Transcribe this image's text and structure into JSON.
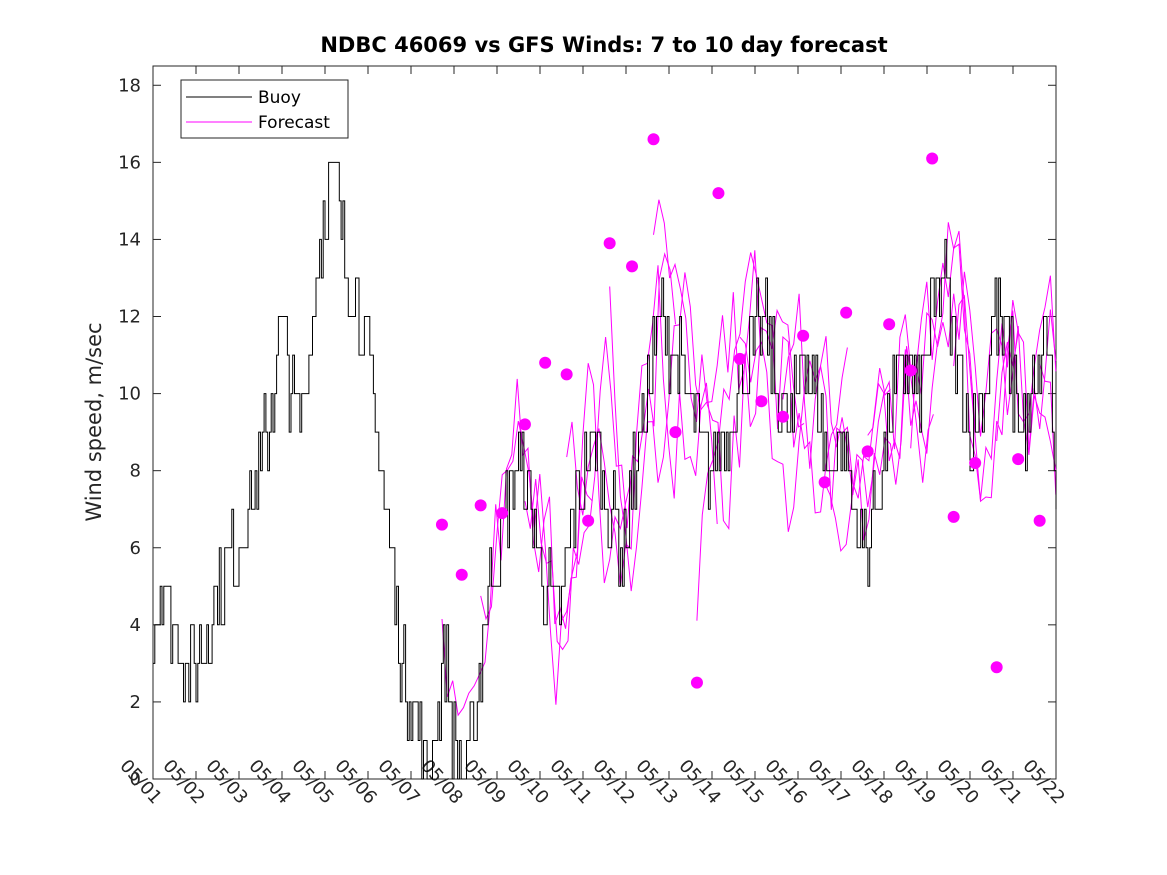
{
  "chart_data": {
    "type": "line",
    "title": "NDBC 46069 vs GFS Winds: 7 to 10 day forecast",
    "xlabel": "",
    "ylabel": "Wind speed, m/sec",
    "xlim": [
      "05/01",
      "05/22"
    ],
    "ylim": [
      0,
      18.5
    ],
    "x_tick_labels": [
      "05/01",
      "05/02",
      "05/03",
      "05/04",
      "05/05",
      "05/06",
      "05/07",
      "05/08",
      "05/09",
      "05/10",
      "05/11",
      "05/12",
      "05/13",
      "05/14",
      "05/15",
      "05/16",
      "05/17",
      "05/18",
      "05/19",
      "05/20",
      "05/21",
      "05/22"
    ],
    "y_ticks": [
      0,
      2,
      4,
      6,
      8,
      10,
      12,
      14,
      16,
      18
    ],
    "legend": {
      "position": "top-left",
      "entries": [
        "Buoy",
        "Forecast"
      ]
    },
    "colors": {
      "buoy": "#000000",
      "forecast": "#ff00ff"
    },
    "grid": false,
    "buoy": {
      "name": "Buoy",
      "x_day": [
        0,
        0.2,
        0.5,
        0.8,
        1.0,
        1.3,
        1.6,
        1.9,
        2.2,
        2.5,
        2.8,
        3.0,
        3.2,
        3.4,
        3.6,
        3.8,
        4.0,
        4.2,
        4.4,
        4.6,
        4.8,
        5.0,
        5.2,
        5.4,
        5.6,
        5.8,
        6.0,
        6.2,
        6.4,
        6.6,
        6.8,
        7.0,
        7.2,
        7.4,
        7.6,
        7.8,
        8.0,
        8.2,
        8.5,
        8.8,
        9.1,
        9.4,
        9.7,
        10.0,
        10.3,
        10.6,
        10.9,
        11.2,
        11.5,
        11.8,
        12.1,
        12.4,
        12.7,
        13.0,
        13.3,
        13.6,
        13.9,
        14.2,
        14.5,
        14.8,
        15.1,
        15.4,
        15.7,
        16.0,
        16.3,
        16.6,
        16.9,
        17.2,
        17.5,
        17.8,
        18.1,
        18.4,
        18.7,
        19.0,
        19.3,
        19.6,
        19.9,
        20.2,
        20.5,
        20.8,
        21.0
      ],
      "values": [
        4,
        5,
        4,
        3,
        3,
        4,
        5,
        6,
        7,
        8,
        10,
        12,
        10,
        9,
        11,
        13,
        15,
        16,
        14,
        13,
        12,
        11,
        9,
        7,
        5,
        3,
        2,
        1,
        0,
        2,
        3,
        1,
        0,
        1,
        3,
        5,
        6,
        7,
        8,
        7,
        5,
        4,
        6,
        8,
        9,
        7,
        6,
        8,
        10,
        12,
        11,
        10,
        9,
        8,
        9,
        10,
        11,
        12,
        10,
        9,
        11,
        10,
        8,
        9,
        7,
        6,
        8,
        10,
        11,
        10,
        12,
        13,
        11,
        9,
        10,
        12,
        11,
        9,
        10,
        12,
        7
      ]
    },
    "forecast_points": {
      "name": "Forecast",
      "x_day": [
        6.72,
        7.18,
        7.62,
        8.12,
        8.65,
        9.12,
        9.62,
        10.12,
        10.62,
        11.14,
        11.64,
        12.15,
        12.65,
        13.15,
        13.65,
        14.15,
        14.65,
        15.12,
        15.62,
        16.12,
        16.62,
        17.12,
        17.62,
        18.12,
        18.62,
        19.12,
        19.62,
        20.12,
        20.62,
        21.0
      ],
      "values": [
        6.6,
        5.3,
        7.1,
        6.9,
        9.2,
        10.8,
        10.5,
        6.7,
        13.9,
        13.3,
        16.6,
        9.0,
        2.5,
        15.2,
        10.9,
        9.8,
        9.4,
        11.5,
        7.7,
        12.1,
        8.5,
        11.8,
        10.6,
        16.1,
        6.8,
        8.2,
        2.9,
        8.3,
        6.7,
        6.7
      ]
    }
  }
}
